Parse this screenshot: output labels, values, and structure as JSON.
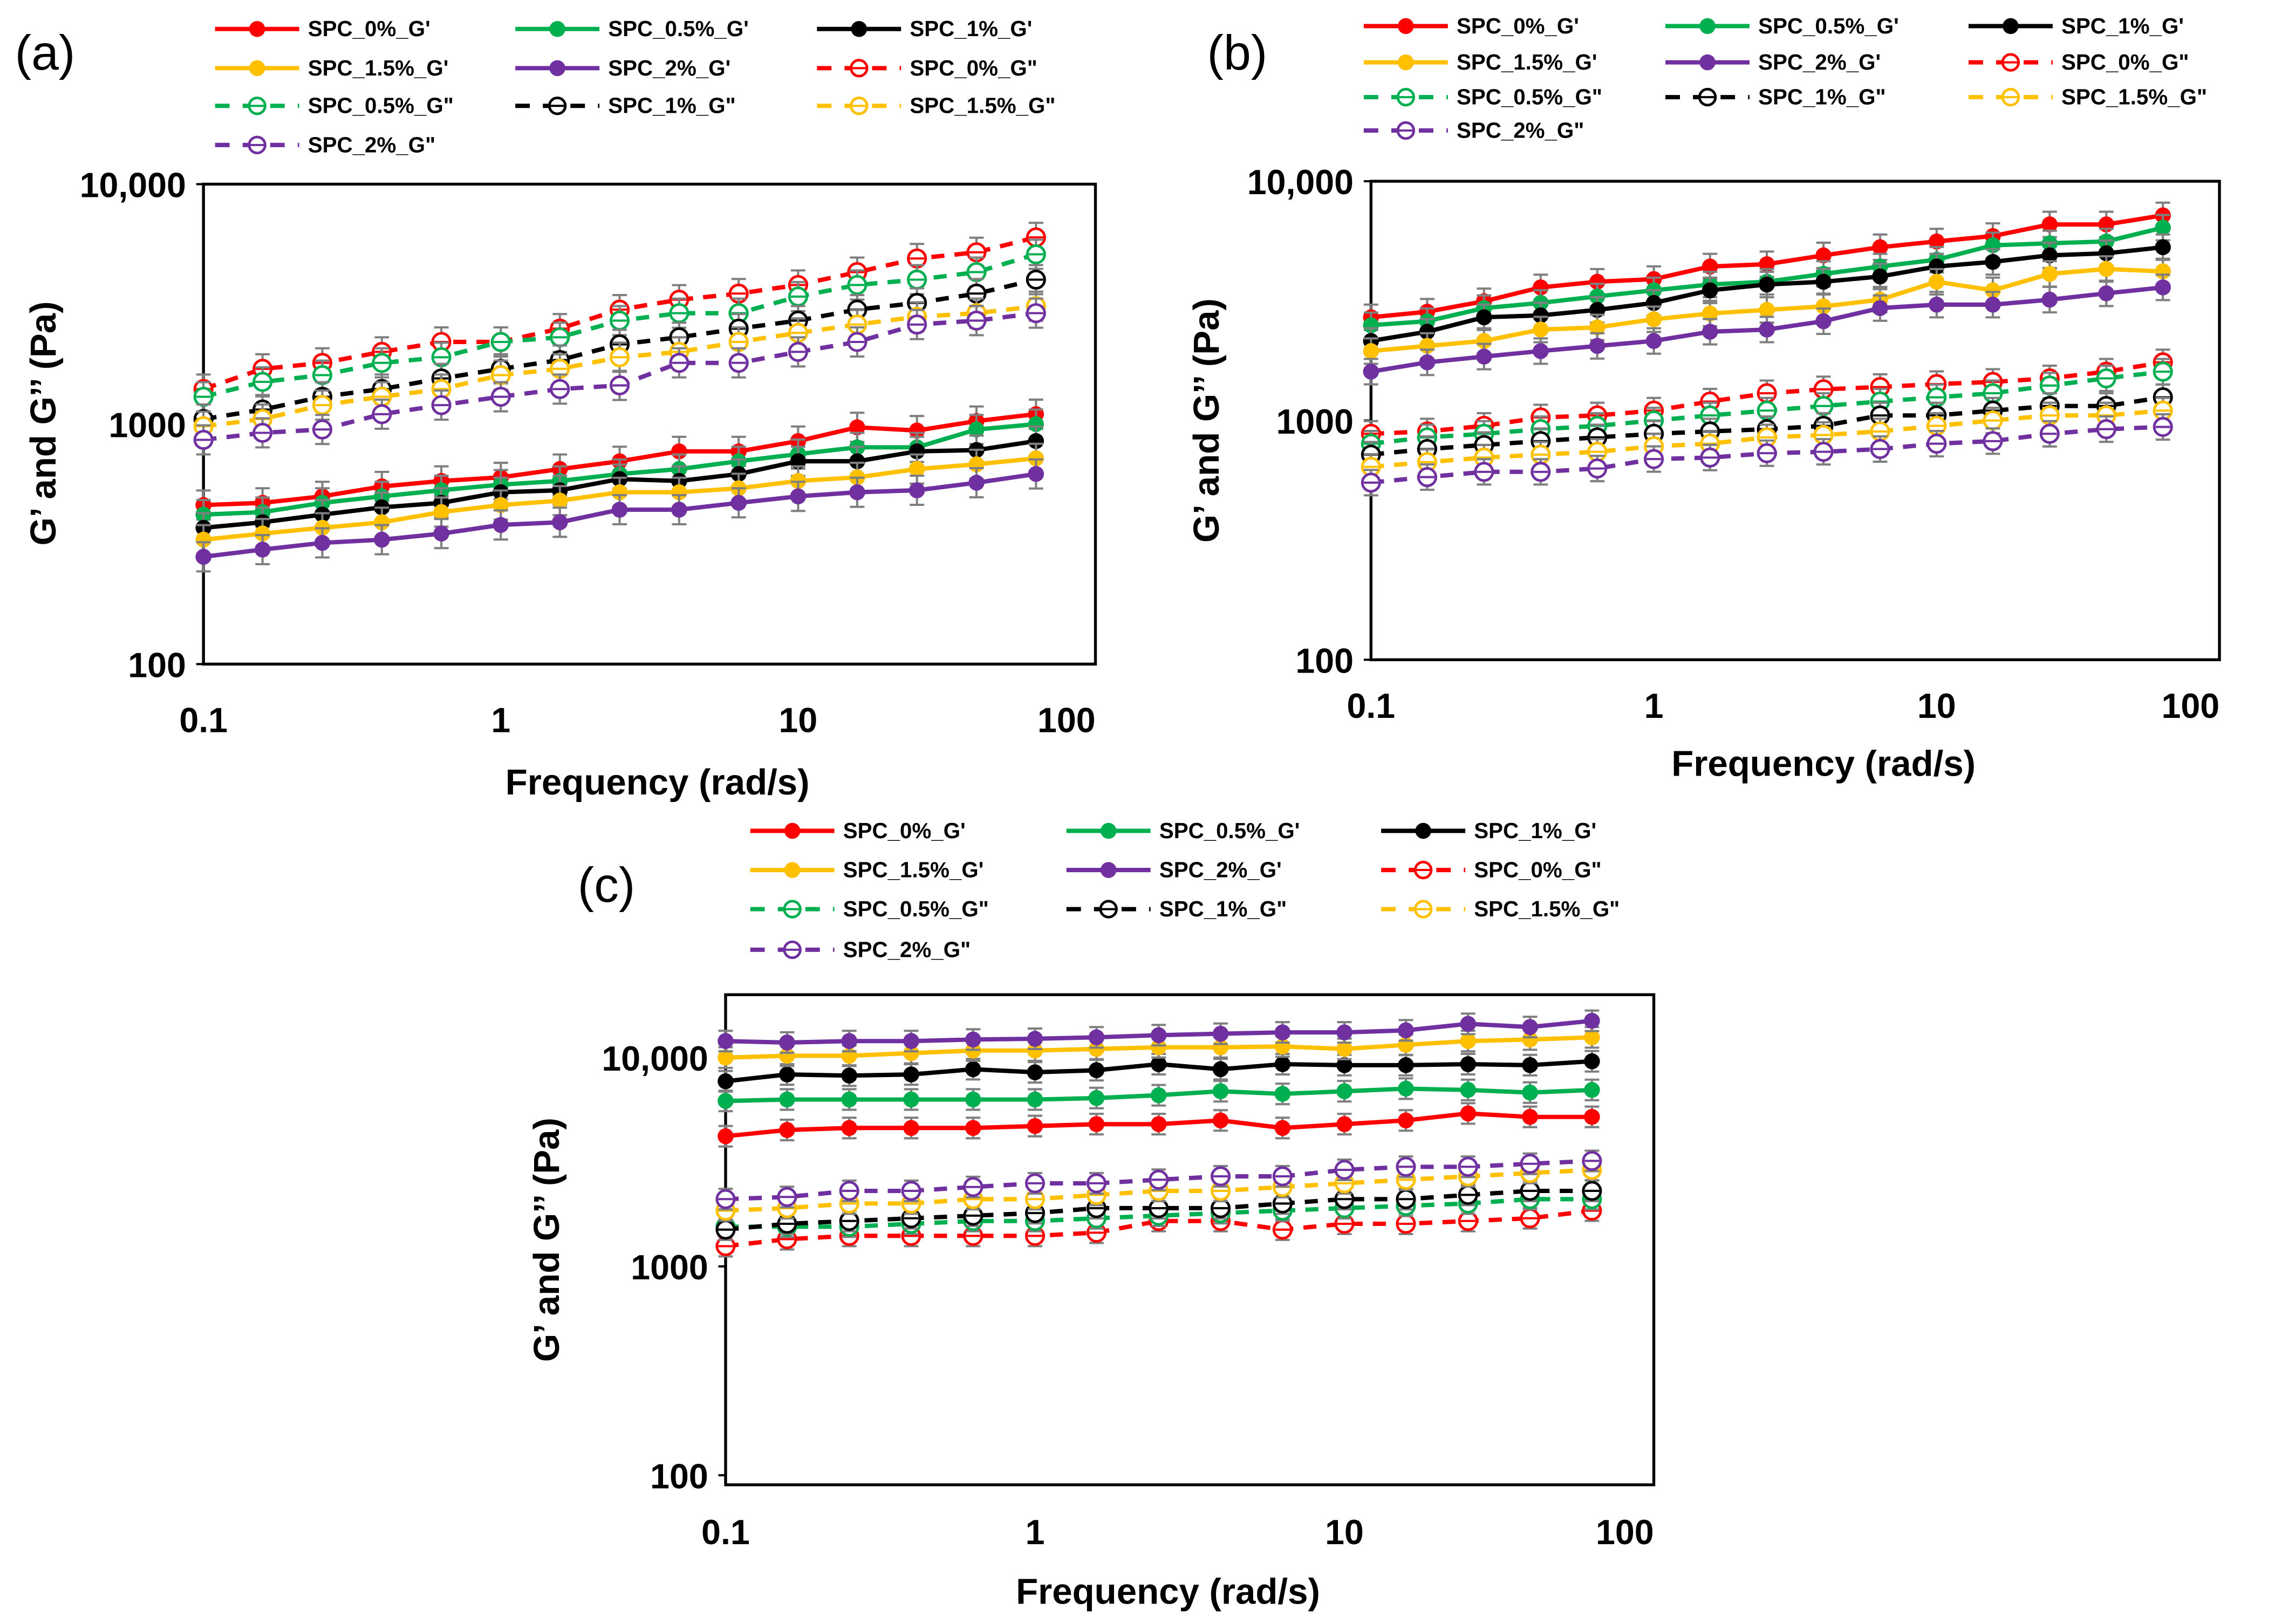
{
  "chart_data": [
    {
      "type": "line",
      "panel_label": "(a)",
      "xlabel": "Frequency (rad/s)",
      "ylabel": "G’ and G’’ (Pa)",
      "xscale": "log",
      "yscale": "log",
      "xlim": [
        0.1,
        100
      ],
      "ylim": [
        100,
        10000
      ],
      "xticks": [
        0.1,
        1,
        10,
        100
      ],
      "xtick_labels": [
        "0.1",
        "1",
        "10",
        "100"
      ],
      "yticks": [
        100,
        1000,
        10000
      ],
      "ytick_labels": [
        "100",
        "1000",
        "10,000"
      ],
      "legend_position": "top",
      "error_frac": 0.15,
      "x": [
        0.1,
        0.158,
        0.251,
        0.398,
        0.631,
        1,
        1.58,
        2.51,
        3.98,
        6.31,
        10,
        15.8,
        25.1,
        39.8,
        63.1
      ],
      "series": [
        {
          "name": "SPC_0%_G'",
          "color": "#ff0000",
          "style": "solid",
          "values": [
            460,
            470,
            500,
            550,
            580,
            600,
            650,
            700,
            770,
            770,
            850,
            970,
            940,
            1030,
            1100
          ]
        },
        {
          "name": "SPC_0.5%_G'",
          "color": "#00b050",
          "style": "solid",
          "values": [
            420,
            430,
            470,
            500,
            530,
            560,
            580,
            620,
            650,
            700,
            750,
            800,
            800,
            950,
            1000
          ]
        },
        {
          "name": "SPC_1%_G'",
          "color": "#000000",
          "style": "solid",
          "values": [
            370,
            390,
            420,
            450,
            470,
            520,
            530,
            590,
            580,
            620,
            700,
            700,
            770,
            780,
            850
          ]
        },
        {
          "name": "SPC_1.5%_G'",
          "color": "#ffc000",
          "style": "solid",
          "values": [
            330,
            350,
            370,
            390,
            430,
            460,
            480,
            520,
            520,
            540,
            580,
            600,
            650,
            680,
            720
          ]
        },
        {
          "name": "SPC_2%_G'",
          "color": "#7030a0",
          "style": "solid",
          "values": [
            280,
            300,
            320,
            330,
            350,
            380,
            390,
            440,
            440,
            470,
            500,
            520,
            530,
            570,
            620
          ]
        },
        {
          "name": "SPC_0%_G\"",
          "color": "#ff0000",
          "style": "dashed",
          "values": [
            1400,
            1700,
            1800,
            2000,
            2200,
            2200,
            2500,
            3000,
            3300,
            3500,
            3800,
            4300,
            4900,
            5200,
            6000
          ]
        },
        {
          "name": "SPC_0.5%_G\"",
          "color": "#00b050",
          "style": "dashed",
          "values": [
            1300,
            1500,
            1600,
            1800,
            1900,
            2200,
            2300,
            2700,
            2900,
            2900,
            3400,
            3800,
            4000,
            4300,
            5100
          ]
        },
        {
          "name": "SPC_1%_G\"",
          "color": "#000000",
          "style": "dashed",
          "values": [
            1050,
            1150,
            1300,
            1400,
            1550,
            1700,
            1850,
            2150,
            2300,
            2500,
            2700,
            3000,
            3200,
            3500,
            4000
          ]
        },
        {
          "name": "SPC_1.5%_G\"",
          "color": "#ffc000",
          "style": "dashed",
          "values": [
            980,
            1050,
            1200,
            1300,
            1400,
            1600,
            1700,
            1900,
            2000,
            2200,
            2400,
            2600,
            2800,
            2900,
            3100
          ]
        },
        {
          "name": "SPC_2%_G\"",
          "color": "#7030a0",
          "style": "dashed",
          "values": [
            860,
            920,
            950,
            1100,
            1200,
            1300,
            1400,
            1450,
            1800,
            1800,
            2000,
            2200,
            2600,
            2700,
            2900
          ]
        }
      ]
    },
    {
      "type": "line",
      "panel_label": "(b)",
      "xlabel": "Frequency (rad/s)",
      "ylabel": "G’ and G’’ (Pa)",
      "xscale": "log",
      "yscale": "log",
      "xlim": [
        0.1,
        100
      ],
      "ylim": [
        100,
        10000
      ],
      "xticks": [
        0.1,
        1,
        10,
        100
      ],
      "xtick_labels": [
        "0.1",
        "1",
        "10",
        "100"
      ],
      "yticks": [
        100,
        1000,
        10000
      ],
      "ytick_labels": [
        "100",
        "1000",
        "10,000"
      ],
      "legend_position": "top",
      "error_frac": 0.13,
      "x": [
        0.1,
        0.158,
        0.251,
        0.398,
        0.631,
        1,
        1.58,
        2.51,
        3.98,
        6.31,
        10,
        15.8,
        25.1,
        39.8,
        63.1
      ],
      "series": [
        {
          "name": "SPC_0%_G'",
          "color": "#ff0000",
          "style": "solid",
          "values": [
            2700,
            2850,
            3150,
            3600,
            3800,
            3900,
            4400,
            4500,
            4900,
            5300,
            5600,
            5900,
            6600,
            6600,
            7200
          ]
        },
        {
          "name": "SPC_0.5%_G'",
          "color": "#00b050",
          "style": "solid",
          "values": [
            2500,
            2600,
            2950,
            3100,
            3300,
            3500,
            3700,
            3800,
            4100,
            4400,
            4700,
            5400,
            5500,
            5600,
            6400
          ]
        },
        {
          "name": "SPC_1%_G'",
          "color": "#000000",
          "style": "solid",
          "values": [
            2150,
            2350,
            2700,
            2750,
            2900,
            3100,
            3500,
            3700,
            3800,
            4000,
            4400,
            4600,
            4900,
            5000,
            5300
          ]
        },
        {
          "name": "SPC_1.5%_G'",
          "color": "#ffc000",
          "style": "solid",
          "values": [
            1950,
            2050,
            2150,
            2400,
            2450,
            2650,
            2800,
            2900,
            3000,
            3200,
            3800,
            3500,
            4100,
            4300,
            4200
          ]
        },
        {
          "name": "SPC_2%_G'",
          "color": "#7030a0",
          "style": "solid",
          "values": [
            1600,
            1750,
            1850,
            1950,
            2050,
            2150,
            2350,
            2400,
            2600,
            2950,
            3050,
            3050,
            3200,
            3400,
            3600
          ]
        },
        {
          "name": "SPC_0%_G\"",
          "color": "#ff0000",
          "style": "dashed",
          "values": [
            880,
            900,
            950,
            1030,
            1050,
            1100,
            1200,
            1300,
            1350,
            1380,
            1420,
            1450,
            1500,
            1600,
            1750
          ]
        },
        {
          "name": "SPC_0.5%_G\"",
          "color": "#00b050",
          "style": "dashed",
          "values": [
            800,
            850,
            880,
            920,
            950,
            1000,
            1050,
            1100,
            1150,
            1200,
            1250,
            1300,
            1400,
            1500,
            1600
          ]
        },
        {
          "name": "SPC_1%_G\"",
          "color": "#000000",
          "style": "dashed",
          "values": [
            720,
            760,
            790,
            820,
            850,
            880,
            900,
            920,
            950,
            1050,
            1050,
            1100,
            1150,
            1150,
            1250
          ]
        },
        {
          "name": "SPC_1.5%_G\"",
          "color": "#ffc000",
          "style": "dashed",
          "values": [
            640,
            670,
            700,
            720,
            740,
            780,
            800,
            850,
            870,
            900,
            950,
            1000,
            1050,
            1050,
            1100
          ]
        },
        {
          "name": "SPC_2%_G\"",
          "color": "#7030a0",
          "style": "dashed",
          "values": [
            550,
            580,
            610,
            610,
            630,
            690,
            700,
            730,
            740,
            760,
            800,
            820,
            880,
            920,
            940
          ]
        }
      ]
    },
    {
      "type": "line",
      "panel_label": "(c)",
      "xlabel": "Frequency (rad/s)",
      "ylabel": "G’ and G’’ (Pa)",
      "xscale": "log",
      "yscale": "log",
      "xlim": [
        0.1,
        100
      ],
      "ylim": [
        90,
        20000
      ],
      "xticks": [
        0.1,
        1,
        10,
        100
      ],
      "xtick_labels": [
        "0.1",
        "1",
        "10",
        "100"
      ],
      "yticks": [
        100,
        1000,
        10000
      ],
      "ytick_labels": [
        "100",
        "1000",
        "10,000"
      ],
      "legend_position": "top",
      "error_frac": 0.12,
      "x": [
        0.1,
        0.158,
        0.251,
        0.398,
        0.631,
        1,
        1.58,
        2.51,
        3.98,
        6.31,
        10,
        15.8,
        25.1,
        39.8,
        63.1
      ],
      "series": [
        {
          "name": "SPC_0%_G'",
          "color": "#ff0000",
          "style": "solid",
          "values": [
            4200,
            4500,
            4600,
            4600,
            4600,
            4700,
            4800,
            4800,
            5000,
            4600,
            4800,
            5000,
            5400,
            5200,
            5200
          ]
        },
        {
          "name": "SPC_0.5%_G'",
          "color": "#00b050",
          "style": "solid",
          "values": [
            6200,
            6300,
            6300,
            6300,
            6300,
            6300,
            6400,
            6600,
            6900,
            6700,
            6900,
            7100,
            7000,
            6800,
            7000
          ]
        },
        {
          "name": "SPC_1%_G'",
          "color": "#000000",
          "style": "solid",
          "values": [
            7700,
            8300,
            8200,
            8300,
            8800,
            8500,
            8700,
            9300,
            8800,
            9300,
            9200,
            9200,
            9300,
            9200,
            9600
          ]
        },
        {
          "name": "SPC_1.5%_G'",
          "color": "#ffc000",
          "style": "solid",
          "values": [
            10000,
            10200,
            10200,
            10500,
            10800,
            10800,
            11000,
            11200,
            11200,
            11300,
            11000,
            11500,
            12000,
            12200,
            12500
          ]
        },
        {
          "name": "SPC_2%_G'",
          "color": "#7030a0",
          "style": "solid",
          "values": [
            12000,
            11800,
            12000,
            12000,
            12200,
            12300,
            12500,
            12800,
            13000,
            13200,
            13200,
            13500,
            14500,
            14000,
            15000
          ]
        },
        {
          "name": "SPC_0%_G\"",
          "color": "#ff0000",
          "style": "dashed",
          "values": [
            1250,
            1350,
            1400,
            1400,
            1400,
            1400,
            1450,
            1650,
            1650,
            1500,
            1600,
            1600,
            1650,
            1700,
            1850
          ]
        },
        {
          "name": "SPC_0.5%_G\"",
          "color": "#00b050",
          "style": "dashed",
          "values": [
            1550,
            1550,
            1550,
            1600,
            1650,
            1650,
            1700,
            1750,
            1800,
            1850,
            1900,
            1950,
            2000,
            2100,
            2100
          ]
        },
        {
          "name": "SPC_1%_G\"",
          "color": "#000000",
          "style": "dashed",
          "values": [
            1500,
            1600,
            1650,
            1700,
            1750,
            1800,
            1900,
            1900,
            1900,
            2000,
            2100,
            2100,
            2200,
            2300,
            2300
          ]
        },
        {
          "name": "SPC_1.5%_G\"",
          "color": "#ffc000",
          "style": "dashed",
          "values": [
            1850,
            1900,
            2000,
            2000,
            2100,
            2100,
            2200,
            2300,
            2300,
            2400,
            2500,
            2600,
            2700,
            2800,
            2900
          ]
        },
        {
          "name": "SPC_2%_G\"",
          "color": "#7030a0",
          "style": "dashed",
          "values": [
            2100,
            2150,
            2300,
            2300,
            2400,
            2500,
            2500,
            2600,
            2700,
            2700,
            2900,
            3000,
            3000,
            3100,
            3200
          ]
        }
      ]
    }
  ]
}
